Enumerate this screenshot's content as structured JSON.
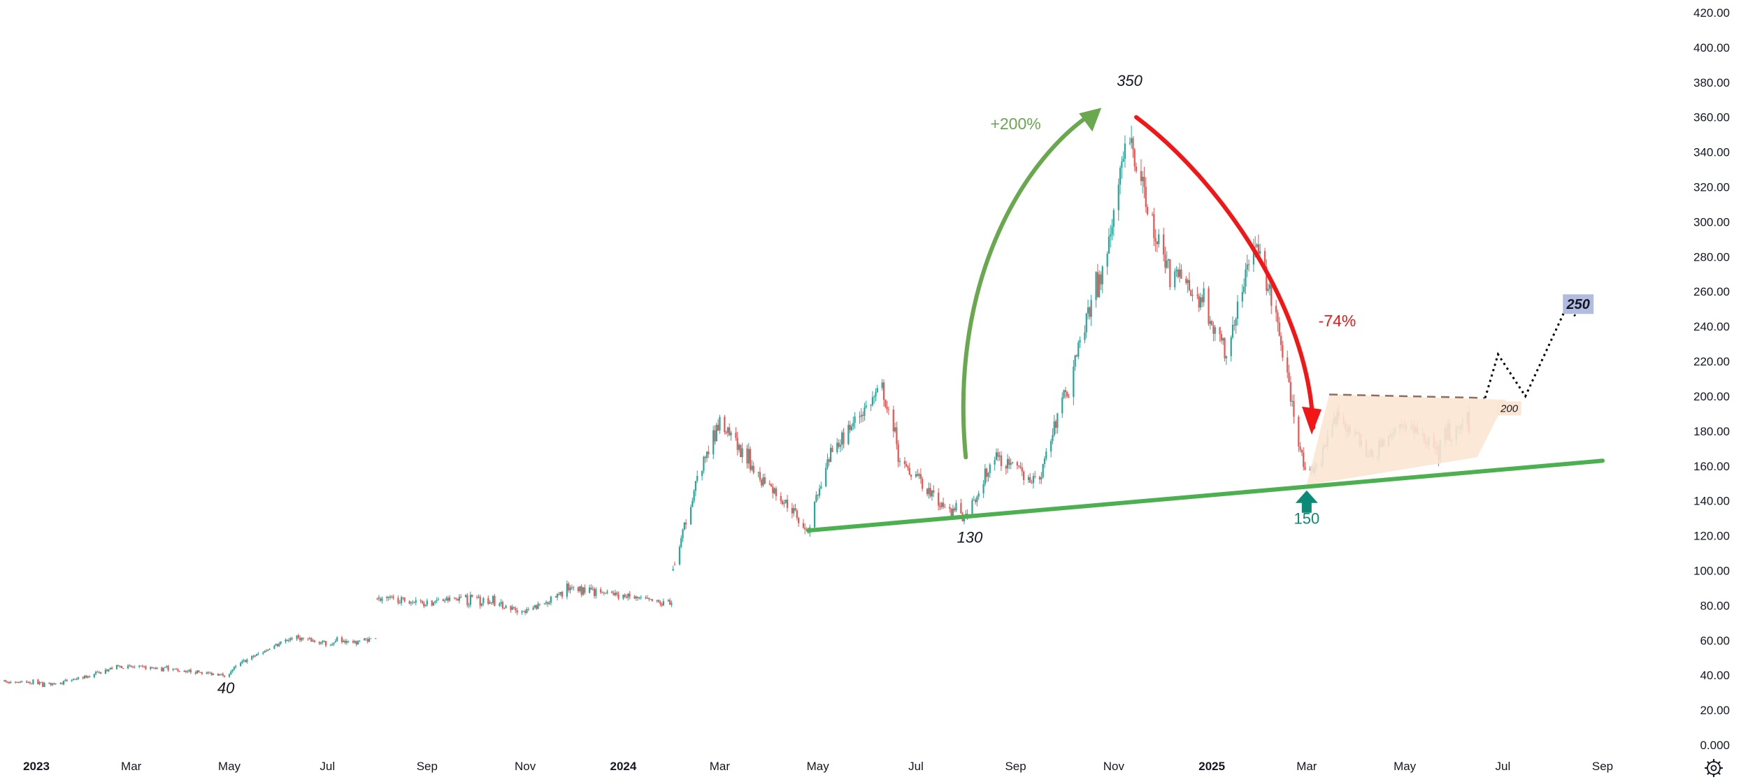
{
  "chart_data": {
    "type": "candlestick",
    "y_axis": {
      "position": "right",
      "ylim": [
        0,
        420
      ],
      "ticks": [
        "0.000",
        "20.00",
        "40.00",
        "60.00",
        "80.00",
        "100.00",
        "120.00",
        "140.00",
        "160.00",
        "180.00",
        "200.00",
        "220.00",
        "240.00",
        "260.00",
        "280.00",
        "300.00",
        "320.00",
        "340.00",
        "360.00",
        "380.00",
        "400.00",
        "420.00"
      ]
    },
    "x_axis": {
      "ticks": [
        {
          "label": "2023",
          "date": "2023-01-01",
          "bold": true
        },
        {
          "label": "Mar",
          "date": "2023-03-01"
        },
        {
          "label": "May",
          "date": "2023-05-01"
        },
        {
          "label": "Jul",
          "date": "2023-07-01"
        },
        {
          "label": "Sep",
          "date": "2023-09-01"
        },
        {
          "label": "Nov",
          "date": "2023-11-01"
        },
        {
          "label": "2024",
          "date": "2024-01-01",
          "bold": true
        },
        {
          "label": "Mar",
          "date": "2024-03-01"
        },
        {
          "label": "May",
          "date": "2024-05-01"
        },
        {
          "label": "Jul",
          "date": "2024-07-01"
        },
        {
          "label": "Sep",
          "date": "2024-09-01"
        },
        {
          "label": "Nov",
          "date": "2024-11-01"
        },
        {
          "label": "2025",
          "date": "2025-01-01",
          "bold": true
        },
        {
          "label": "Mar",
          "date": "2025-03-01"
        },
        {
          "label": "May",
          "date": "2025-05-01"
        },
        {
          "label": "Jul",
          "date": "2025-07-01"
        },
        {
          "label": "Sep",
          "date": "2025-09-01"
        }
      ]
    },
    "price_path": [
      [
        "2022-12-01",
        37
      ],
      [
        "2023-01-10",
        35
      ],
      [
        "2023-02-05",
        40
      ],
      [
        "2023-02-20",
        45
      ],
      [
        "2023-03-20",
        44
      ],
      [
        "2023-04-10",
        42
      ],
      [
        "2023-04-28",
        40
      ],
      [
        "2023-05-10",
        48
      ],
      [
        "2023-06-10",
        62
      ],
      [
        "2023-07-01",
        58
      ],
      [
        "2023-07-31",
        61
      ],
      [
        "2023-08-01",
        84
      ],
      [
        "2023-09-01",
        82
      ],
      [
        "2023-10-01",
        85
      ],
      [
        "2023-11-01",
        76
      ],
      [
        "2023-12-01",
        90
      ],
      [
        "2024-01-10",
        84
      ],
      [
        "2024-01-31",
        80
      ],
      [
        "2024-02-01",
        100
      ],
      [
        "2024-02-15",
        150
      ],
      [
        "2024-03-01",
        185
      ],
      [
        "2024-03-20",
        160
      ],
      [
        "2024-04-15",
        135
      ],
      [
        "2024-04-25",
        123
      ],
      [
        "2024-05-10",
        170
      ],
      [
        "2024-06-10",
        205
      ],
      [
        "2024-06-20",
        165
      ],
      [
        "2024-07-20",
        135
      ],
      [
        "2024-07-31",
        130
      ],
      [
        "2024-08-20",
        165
      ],
      [
        "2024-09-15",
        150
      ],
      [
        "2024-10-10",
        230
      ],
      [
        "2024-10-25",
        270
      ],
      [
        "2024-11-10",
        350
      ],
      [
        "2024-12-01",
        280
      ],
      [
        "2024-12-20",
        260
      ],
      [
        "2025-01-10",
        225
      ],
      [
        "2025-01-28",
        290
      ],
      [
        "2025-02-10",
        245
      ],
      [
        "2025-03-01",
        150
      ],
      [
        "2025-03-20",
        190
      ],
      [
        "2025-04-10",
        165
      ],
      [
        "2025-05-01",
        185
      ],
      [
        "2025-05-20",
        170
      ],
      [
        "2025-06-10",
        188
      ]
    ],
    "annotations": {
      "labels": [
        {
          "text": "40",
          "date": "2023-04-28",
          "value": 40
        },
        {
          "text": "130",
          "date": "2024-07-31",
          "value": 130
        },
        {
          "text": "350",
          "date": "2024-11-10",
          "value": 350
        },
        {
          "text": "150",
          "date": "2025-03-01",
          "value": 150
        },
        {
          "text": "+200%"
        },
        {
          "text": "-74%"
        },
        {
          "text": "200"
        },
        {
          "text": "250"
        }
      ],
      "support_line": {
        "from": {
          "date": "2024-04-25",
          "value": 123
        },
        "to": {
          "date": "2025-09-01",
          "value": 163
        },
        "color": "#4caf50"
      },
      "rise_arrow": {
        "from": {
          "date": "2024-08-01",
          "value": 165
        },
        "to": {
          "date": "2024-10-20",
          "value": 363
        },
        "color": "#6aa84f"
      },
      "fall_arrow": {
        "from": {
          "date": "2024-11-15",
          "value": 360
        },
        "to": {
          "date": "2025-03-05",
          "value": 182
        },
        "color": "#f21616"
      },
      "target_value": 250,
      "range_top": 200,
      "colors": {
        "up": "#26a69a",
        "down": "#ef5350",
        "range_fill": "#fbe5d3",
        "dash": "#8d6e63",
        "target_bg": "#b2bce0"
      }
    }
  },
  "ui": {
    "settings_icon": "gear-icon"
  }
}
